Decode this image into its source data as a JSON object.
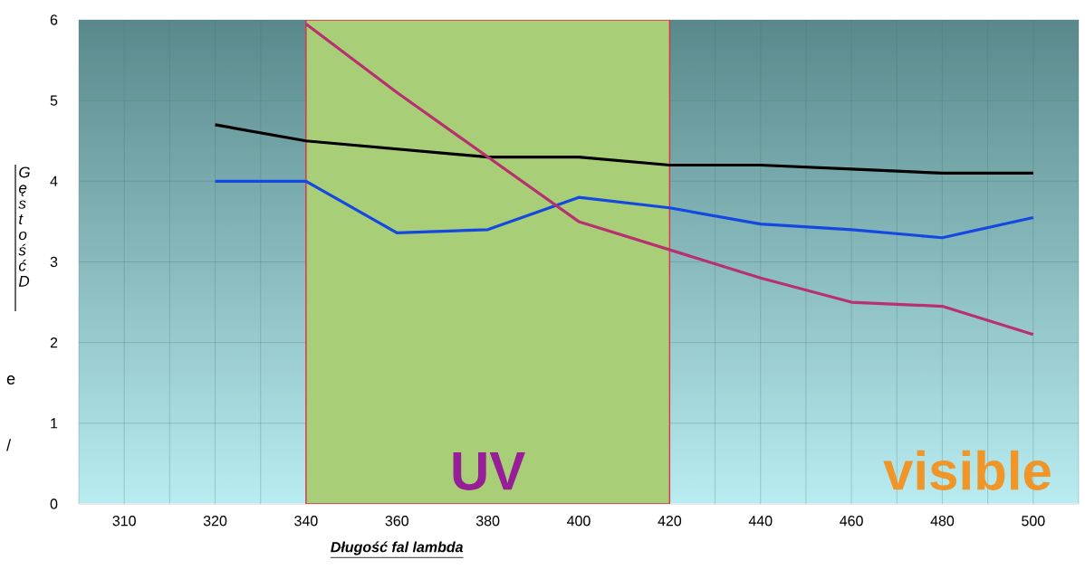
{
  "chart_data": {
    "type": "line",
    "xlabel": "Długość fal lambda",
    "ylabel": "Gęstość D",
    "categories": [
      "310",
      "320",
      "340",
      "360",
      "380",
      "400",
      "420",
      "440",
      "460",
      "480",
      "500"
    ],
    "series": [
      {
        "color": "#000000",
        "values": [
          null,
          4.7,
          4.5,
          4.4,
          4.3,
          4.3,
          4.2,
          4.2,
          4.15,
          4.1,
          4.1
        ]
      },
      {
        "color": "#1448e0",
        "values": [
          null,
          4.0,
          4.0,
          3.36,
          3.4,
          3.8,
          3.67,
          3.47,
          3.4,
          3.3,
          3.55
        ]
      },
      {
        "color": "#b83070",
        "values": [
          null,
          null,
          5.95,
          5.1,
          4.3,
          3.5,
          3.15,
          2.8,
          2.5,
          2.45,
          2.1
        ]
      }
    ],
    "bands": [
      {
        "axis": "x",
        "from": "340",
        "to": "420",
        "label": "UV",
        "color": "#a8cf78"
      }
    ],
    "annotations": [
      "visible",
      "e",
      "/"
    ],
    "ylim": [
      0,
      6
    ],
    "yticks": [
      0,
      1,
      2,
      3,
      4,
      5,
      6
    ],
    "grid": true,
    "marker": "none",
    "line_style": "solid"
  }
}
